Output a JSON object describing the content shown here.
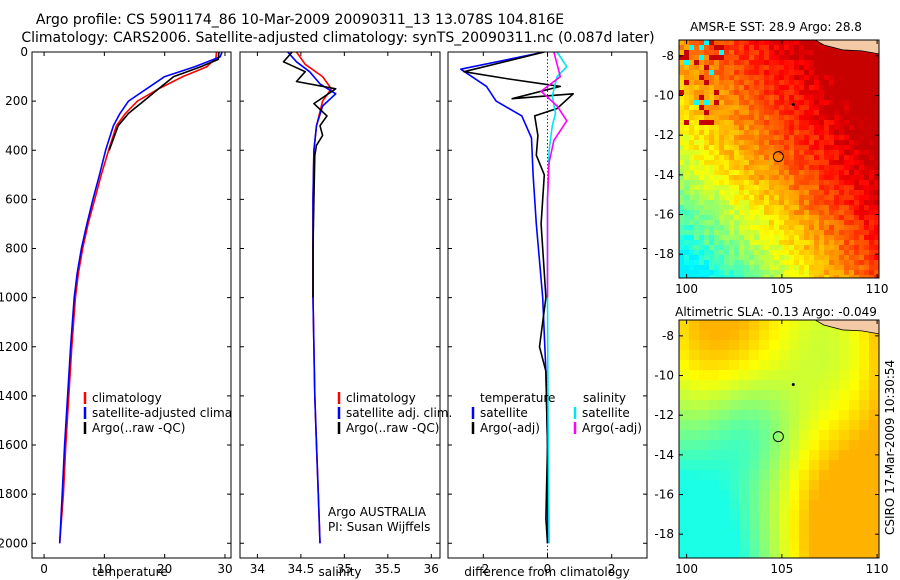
{
  "header": {
    "title_line1": "Argo profile: CS 5901174_86 10-Mar-2009 20090311_13 13.078S 104.816E",
    "title_line2": "Climatology: CARS2006. Satellite-adjusted climatology: synTS_20090311.nc (0.087d later)"
  },
  "credit": "CSIRO 17-Mar-2009 10:30:54",
  "colors": {
    "climatology": "#ff0000",
    "satellite": "#0000ff",
    "argo": "#000000",
    "salinity_satellite": "#00e5ee",
    "salinity_argo": "#ff00ff"
  },
  "chart_data": [
    {
      "type": "line",
      "xlabel": "temperature",
      "ylabel": "",
      "xlim": [
        -2,
        31
      ],
      "ylim": [
        0,
        2060
      ],
      "y_reversed": true,
      "xticks": [
        0,
        10,
        20,
        30
      ],
      "yticks": [
        0,
        200,
        400,
        600,
        800,
        1000,
        1200,
        1400,
        1600,
        1800,
        2000
      ],
      "legend": [
        "climatology",
        "satellite-adjusted climatology",
        "Argo(..raw -QC)"
      ],
      "legend_position": "lower-right",
      "series": [
        {
          "name": "climatology",
          "color": "#ff0000",
          "points": [
            [
              28.6,
              0
            ],
            [
              28.5,
              25
            ],
            [
              27,
              60
            ],
            [
              23,
              100
            ],
            [
              19,
              150
            ],
            [
              15.5,
              200
            ],
            [
              13.5,
              250
            ],
            [
              12,
              300
            ],
            [
              10.7,
              400
            ],
            [
              9.5,
              500
            ],
            [
              8.4,
              600
            ],
            [
              7.3,
              700
            ],
            [
              6.4,
              800
            ],
            [
              5.7,
              900
            ],
            [
              5.2,
              1000
            ],
            [
              4.6,
              1200
            ],
            [
              4.1,
              1400
            ],
            [
              3.6,
              1600
            ],
            [
              3.2,
              1800
            ],
            [
              2.6,
              2000
            ]
          ]
        },
        {
          "name": "satellite-adjusted climatology",
          "color": "#0000ff",
          "points": [
            [
              29.5,
              0
            ],
            [
              29.2,
              20
            ],
            [
              25,
              60
            ],
            [
              20,
              100
            ],
            [
              17,
              150
            ],
            [
              14,
              200
            ],
            [
              12.6,
              250
            ],
            [
              11.5,
              300
            ],
            [
              10.2,
              400
            ],
            [
              9.2,
              500
            ],
            [
              8.1,
              600
            ],
            [
              7.1,
              700
            ],
            [
              6.2,
              800
            ],
            [
              5.5,
              900
            ],
            [
              5,
              1000
            ],
            [
              4.4,
              1200
            ],
            [
              3.9,
              1400
            ],
            [
              3.4,
              1600
            ],
            [
              3,
              1800
            ],
            [
              2.6,
              2000
            ]
          ]
        },
        {
          "name": "Argo(..raw -QC)",
          "color": "#000000",
          "points": [
            [
              29,
              0
            ],
            [
              28.9,
              30
            ],
            [
              26,
              60
            ],
            [
              21.5,
              100
            ],
            [
              19,
              150
            ],
            [
              16.5,
              200
            ],
            [
              14,
              250
            ],
            [
              12.3,
              300
            ],
            [
              10.8,
              400
            ]
          ]
        }
      ]
    },
    {
      "type": "line",
      "xlabel": "salinity",
      "xlim": [
        33.8,
        36.1
      ],
      "ylim": [
        0,
        2060
      ],
      "y_reversed": true,
      "xticks": [
        34,
        34.5,
        35,
        35.5,
        36
      ],
      "legend": [
        "climatology",
        "satellite adj. clim.",
        "Argo(..raw -QC)"
      ],
      "legend_position": "lower-right",
      "annotation_lines": [
        "Argo AUSTRALIA",
        "PI: Susan Wijffels"
      ],
      "series": [
        {
          "name": "climatology",
          "color": "#ff0000",
          "points": [
            [
              34.45,
              0
            ],
            [
              34.55,
              50
            ],
            [
              34.75,
              100
            ],
            [
              34.85,
              150
            ],
            [
              34.75,
              200
            ],
            [
              34.68,
              300
            ],
            [
              34.65,
              400
            ],
            [
              34.64,
              600
            ],
            [
              34.64,
              800
            ],
            [
              34.64,
              1000
            ],
            [
              34.65,
              1200
            ],
            [
              34.66,
              1400
            ],
            [
              34.68,
              1600
            ],
            [
              34.7,
              1800
            ],
            [
              34.72,
              2000
            ]
          ]
        },
        {
          "name": "satellite adj. clim.",
          "color": "#0000ff",
          "points": [
            [
              34.35,
              0
            ],
            [
              34.45,
              40
            ],
            [
              34.6,
              80
            ],
            [
              34.72,
              130
            ],
            [
              34.9,
              170
            ],
            [
              34.75,
              220
            ],
            [
              34.68,
              300
            ],
            [
              34.65,
              400
            ],
            [
              34.64,
              600
            ],
            [
              34.64,
              800
            ],
            [
              34.64,
              1000
            ],
            [
              34.65,
              1200
            ],
            [
              34.66,
              1400
            ],
            [
              34.68,
              1600
            ],
            [
              34.7,
              1800
            ],
            [
              34.72,
              2000
            ]
          ]
        },
        {
          "name": "Argo(..raw -QC)",
          "color": "#000000",
          "points": [
            [
              34.4,
              0
            ],
            [
              34.3,
              40
            ],
            [
              34.55,
              80
            ],
            [
              34.45,
              120
            ],
            [
              34.9,
              150
            ],
            [
              34.65,
              210
            ],
            [
              34.8,
              260
            ],
            [
              34.72,
              300
            ],
            [
              34.75,
              340
            ],
            [
              34.68,
              380
            ],
            [
              34.66,
              420
            ],
            [
              34.65,
              600
            ],
            [
              34.64,
              800
            ],
            [
              34.64,
              1000
            ]
          ]
        }
      ]
    },
    {
      "type": "line",
      "xlabel": "difference from climatology",
      "xlim": [
        -3.1,
        3.1
      ],
      "ylim": [
        0,
        2060
      ],
      "y_reversed": true,
      "xticks": [
        -2,
        0,
        2
      ],
      "legend": [
        "temperature",
        "satellite",
        "Argo(-adj)",
        "salinity",
        "satellite",
        "Argo(-adj)"
      ],
      "legend_position": "lower-center",
      "series": [
        {
          "name": "temperature satellite",
          "color": "#0000ff",
          "points": [
            [
              -0.1,
              0
            ],
            [
              -2.7,
              70
            ],
            [
              -1.9,
              140
            ],
            [
              -1.6,
              200
            ],
            [
              -0.8,
              260
            ],
            [
              -0.5,
              350
            ],
            [
              -0.45,
              500
            ],
            [
              -0.35,
              700
            ],
            [
              -0.15,
              1000
            ],
            [
              -0.05,
              1300
            ],
            [
              0,
              1600
            ],
            [
              0,
              2000
            ]
          ]
        },
        {
          "name": "temperature Argo(-adj)",
          "color": "#000000",
          "points": [
            [
              -0.1,
              0
            ],
            [
              -2.6,
              80
            ],
            [
              -1.2,
              110
            ],
            [
              0.4,
              140
            ],
            [
              -1.1,
              190
            ],
            [
              0.8,
              170
            ],
            [
              0.3,
              230
            ],
            [
              -0.4,
              260
            ],
            [
              -0.3,
              340
            ],
            [
              -0.35,
              420
            ],
            [
              -0.1,
              500
            ],
            [
              -0.2,
              700
            ],
            [
              -0.05,
              1000
            ],
            [
              -0.25,
              1200
            ],
            [
              -0.05,
              1300
            ],
            [
              0,
              1600
            ],
            [
              -0.05,
              1900
            ],
            [
              0,
              2000
            ]
          ]
        },
        {
          "name": "salinity satellite",
          "color": "#00e5ee",
          "points": [
            [
              0.3,
              0
            ],
            [
              0.6,
              60
            ],
            [
              0.3,
              100
            ],
            [
              0.15,
              180
            ],
            [
              0.25,
              250
            ],
            [
              0.15,
              300
            ],
            [
              0.05,
              400
            ],
            [
              0,
              600
            ],
            [
              0,
              1000
            ],
            [
              0.02,
              1500
            ],
            [
              0.05,
              2000
            ]
          ]
        },
        {
          "name": "salinity Argo(-adj)",
          "color": "#ff00ff",
          "points": [
            [
              0.2,
              0
            ],
            [
              0.4,
              100
            ],
            [
              -0.2,
              160
            ],
            [
              0.3,
              220
            ],
            [
              0.6,
              280
            ],
            [
              0.2,
              360
            ],
            [
              0.05,
              450
            ],
            [
              0,
              600
            ],
            [
              0,
              1000
            ]
          ]
        }
      ]
    },
    {
      "type": "heatmap",
      "title": "AMSR-E SST: 28.9 Argo: 28.8",
      "xlim": [
        99.6,
        110.1
      ],
      "ylim": [
        -19.2,
        -7.2
      ],
      "xticks": [
        100,
        105,
        110
      ],
      "yticks": [
        -8,
        -10,
        -12,
        -14,
        -16,
        -18
      ],
      "argo_position": [
        104.816,
        -13.078
      ]
    },
    {
      "type": "heatmap",
      "title": "Altimetric SLA: -0.13 Argo: -0.049",
      "xlim": [
        99.6,
        110.1
      ],
      "ylim": [
        -19.2,
        -7.2
      ],
      "xticks": [
        100,
        105,
        110
      ],
      "yticks": [
        -8,
        -10,
        -12,
        -14,
        -16,
        -18
      ],
      "argo_position": [
        104.816,
        -13.078
      ]
    }
  ]
}
